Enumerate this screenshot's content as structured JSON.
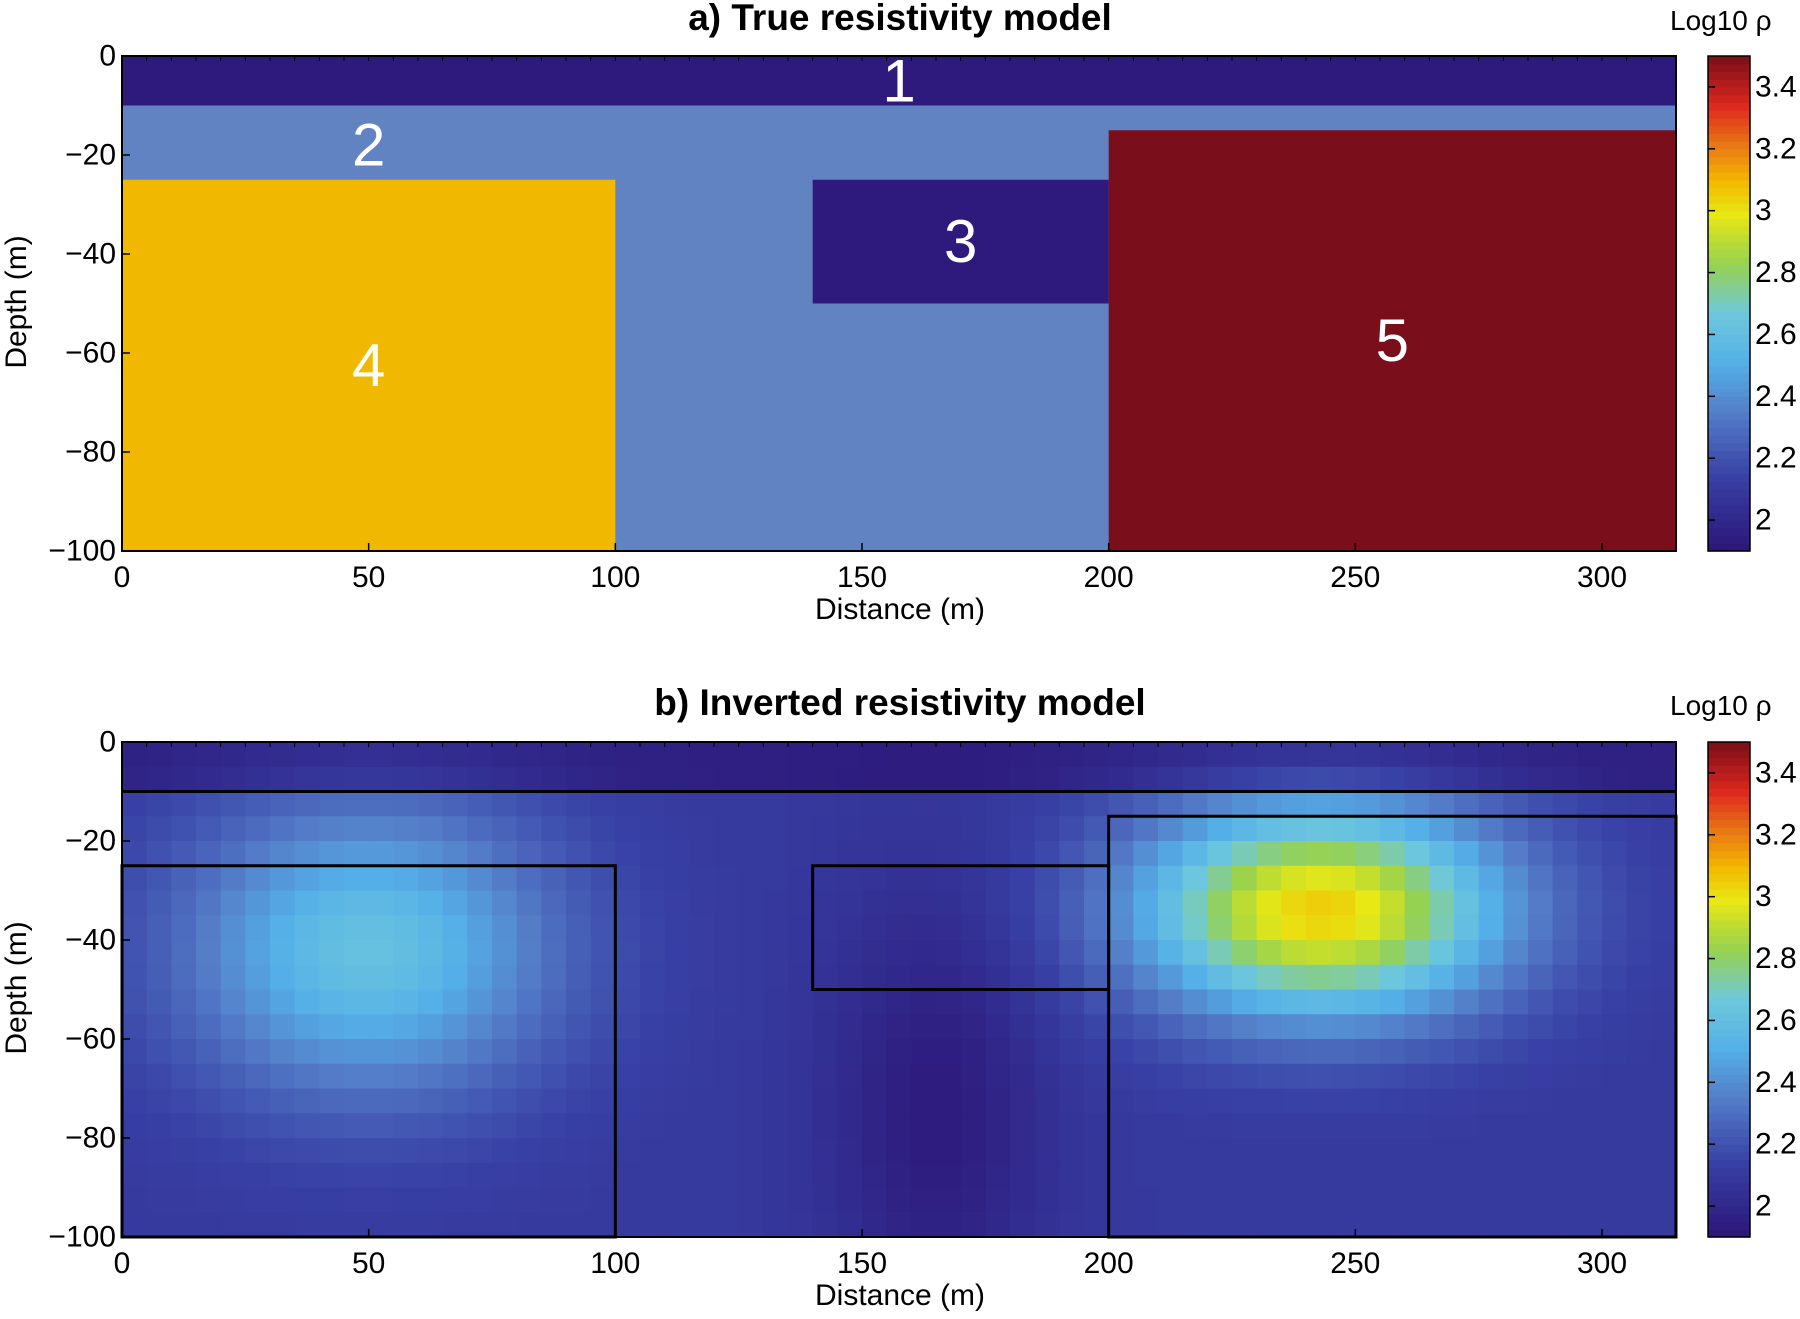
{
  "chart_data": [
    {
      "panel": "a",
      "type": "heatmap",
      "title": "a) True resistivity model",
      "xlabel": "Distance (m)",
      "ylabel": "Depth (m)",
      "xlim": [
        0,
        315
      ],
      "ylim": [
        -100,
        0
      ],
      "xticks": [
        0,
        50,
        100,
        150,
        200,
        250,
        300
      ],
      "yticks": [
        0,
        -20,
        -40,
        -60,
        -80,
        -100
      ],
      "colorbar": {
        "label": "Log10 ρ",
        "range": [
          1.9,
          3.5
        ],
        "ticks": [
          "2",
          "2.2",
          "2.4",
          "2.6",
          "2.8",
          "3",
          "3.2",
          "3.4"
        ]
      },
      "regions": [
        {
          "label": "1",
          "x": [
            0,
            315
          ],
          "depth": [
            0,
            -10
          ],
          "log10_rho": 1.95,
          "color": "#2e1a7c"
        },
        {
          "label": "2",
          "x": [
            0,
            315
          ],
          "depth": [
            -10,
            -100
          ],
          "log10_rho": 2.3,
          "color": "#6183c1"
        },
        {
          "label": "3",
          "x": [
            140,
            200
          ],
          "depth": [
            -25,
            -50
          ],
          "log10_rho": 1.95,
          "color": "#2e1a7c"
        },
        {
          "label": "4",
          "x": [
            0,
            100
          ],
          "depth": [
            -25,
            -100
          ],
          "log10_rho": 2.95,
          "color": "#f1b800"
        },
        {
          "label": "5",
          "x": [
            200,
            315
          ],
          "depth": [
            -15,
            -100
          ],
          "log10_rho": 3.5,
          "color": "#7a0e1a"
        }
      ]
    },
    {
      "panel": "b",
      "type": "heatmap",
      "title": "b) Inverted resistivity model",
      "xlabel": "Distance (m)",
      "ylabel": "Depth (m)",
      "xlim": [
        0,
        315
      ],
      "ylim": [
        -100,
        0
      ],
      "xticks": [
        0,
        50,
        100,
        150,
        200,
        250,
        300
      ],
      "yticks": [
        0,
        -20,
        -40,
        -60,
        -80,
        -100
      ],
      "colorbar": {
        "label": "Log10 ρ",
        "range": [
          1.9,
          3.5
        ],
        "ticks": [
          "2",
          "2.2",
          "2.4",
          "2.6",
          "2.8",
          "3",
          "3.2",
          "3.4"
        ]
      },
      "cell_size": {
        "dx": 5,
        "dz": 5
      },
      "background_log10_rho": 2.1,
      "anomalies": [
        {
          "center_x": 50,
          "center_depth": -42,
          "peak_log10_rho": 2.62,
          "spread_x": 38,
          "spread_depth": 30
        },
        {
          "center_x": 243,
          "center_depth": -34,
          "peak_log10_rho": 3.05,
          "spread_x": 38,
          "spread_depth": 22
        },
        {
          "center_x": 165,
          "center_depth": -75,
          "peak_log10_rho": 1.93,
          "spread_x": 22,
          "spread_depth": 45
        }
      ],
      "outlines": [
        {
          "x": [
            0,
            315
          ],
          "depth": [
            -10,
            -10
          ]
        },
        {
          "x": [
            0,
            100
          ],
          "depth": [
            -25,
            -100
          ]
        },
        {
          "x": [
            140,
            200
          ],
          "depth": [
            -25,
            -50
          ]
        },
        {
          "x": [
            200,
            315
          ],
          "depth": [
            -15,
            -100
          ]
        }
      ]
    }
  ]
}
